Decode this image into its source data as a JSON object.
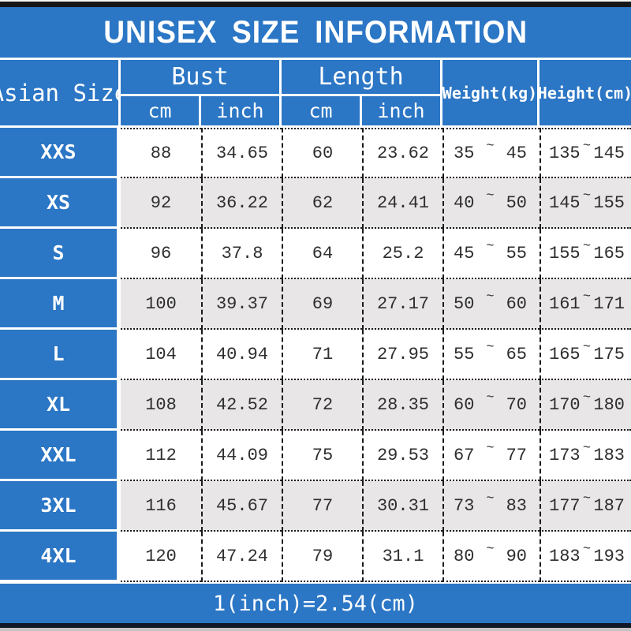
{
  "title": "UNISEX SIZE INFORMATION",
  "footer_note": "1(inch)=2.54(cm)",
  "colors": {
    "blue": "#2b76c5",
    "row_alt": "#e8e6e7",
    "text_dark": "#2e2e2e",
    "bar_dark": "#161616",
    "bar_navy": "#111827",
    "bar_gray": "#c4c4c4"
  },
  "table": {
    "header": {
      "asian_size": "Asian Size",
      "bust": "Bust",
      "length": "Length",
      "cm": "cm",
      "inch": "inch",
      "weight": "Weight(kg)",
      "height": "Height(cm)",
      "tilde": "~"
    },
    "rows": [
      {
        "size": "XXS",
        "bust_cm": "88",
        "bust_inch": "34.65",
        "length_cm": "60",
        "length_inch": "23.62",
        "weight_min": "35",
        "weight_max": "45",
        "height_min": "135",
        "height_max": "145"
      },
      {
        "size": "XS",
        "bust_cm": "92",
        "bust_inch": "36.22",
        "length_cm": "62",
        "length_inch": "24.41",
        "weight_min": "40",
        "weight_max": "50",
        "height_min": "145",
        "height_max": "155"
      },
      {
        "size": "S",
        "bust_cm": "96",
        "bust_inch": "37.8",
        "length_cm": "64",
        "length_inch": "25.2",
        "weight_min": "45",
        "weight_max": "55",
        "height_min": "155",
        "height_max": "165"
      },
      {
        "size": "M",
        "bust_cm": "100",
        "bust_inch": "39.37",
        "length_cm": "69",
        "length_inch": "27.17",
        "weight_min": "50",
        "weight_max": "60",
        "height_min": "161",
        "height_max": "171"
      },
      {
        "size": "L",
        "bust_cm": "104",
        "bust_inch": "40.94",
        "length_cm": "71",
        "length_inch": "27.95",
        "weight_min": "55",
        "weight_max": "65",
        "height_min": "165",
        "height_max": "175"
      },
      {
        "size": "XL",
        "bust_cm": "108",
        "bust_inch": "42.52",
        "length_cm": "72",
        "length_inch": "28.35",
        "weight_min": "60",
        "weight_max": "70",
        "height_min": "170",
        "height_max": "180"
      },
      {
        "size": "XXL",
        "bust_cm": "112",
        "bust_inch": "44.09",
        "length_cm": "75",
        "length_inch": "29.53",
        "weight_min": "67",
        "weight_max": "77",
        "height_min": "173",
        "height_max": "183"
      },
      {
        "size": "3XL",
        "bust_cm": "116",
        "bust_inch": "45.67",
        "length_cm": "77",
        "length_inch": "30.31",
        "weight_min": "73",
        "weight_max": "83",
        "height_min": "177",
        "height_max": "187"
      },
      {
        "size": "4XL",
        "bust_cm": "120",
        "bust_inch": "47.24",
        "length_cm": "79",
        "length_inch": "31.1",
        "weight_min": "80",
        "weight_max": "90",
        "height_min": "183",
        "height_max": "193"
      }
    ]
  },
  "chart_data": {
    "type": "table",
    "title": "UNISEX SIZE INFORMATION",
    "columns": [
      "Asian Size",
      "Bust cm",
      "Bust inch",
      "Length cm",
      "Length inch",
      "Weight(kg)",
      "Height(cm)"
    ],
    "rows": [
      [
        "XXS",
        88,
        34.65,
        60,
        23.62,
        "35~45",
        "135~145"
      ],
      [
        "XS",
        92,
        36.22,
        62,
        24.41,
        "40~50",
        "145~155"
      ],
      [
        "S",
        96,
        37.8,
        64,
        25.2,
        "45~55",
        "155~165"
      ],
      [
        "M",
        100,
        39.37,
        69,
        27.17,
        "50~60",
        "161~171"
      ],
      [
        "L",
        104,
        40.94,
        71,
        27.95,
        "55~65",
        "165~175"
      ],
      [
        "XL",
        108,
        42.52,
        72,
        28.35,
        "60~70",
        "170~180"
      ],
      [
        "XXL",
        112,
        44.09,
        75,
        29.53,
        "67~77",
        "173~183"
      ],
      [
        "3XL",
        116,
        45.67,
        77,
        30.31,
        "73~83",
        "177~187"
      ],
      [
        "4XL",
        120,
        47.24,
        79,
        31.1,
        "80~90",
        "183~193"
      ]
    ],
    "note": "1(inch)=2.54(cm)"
  }
}
